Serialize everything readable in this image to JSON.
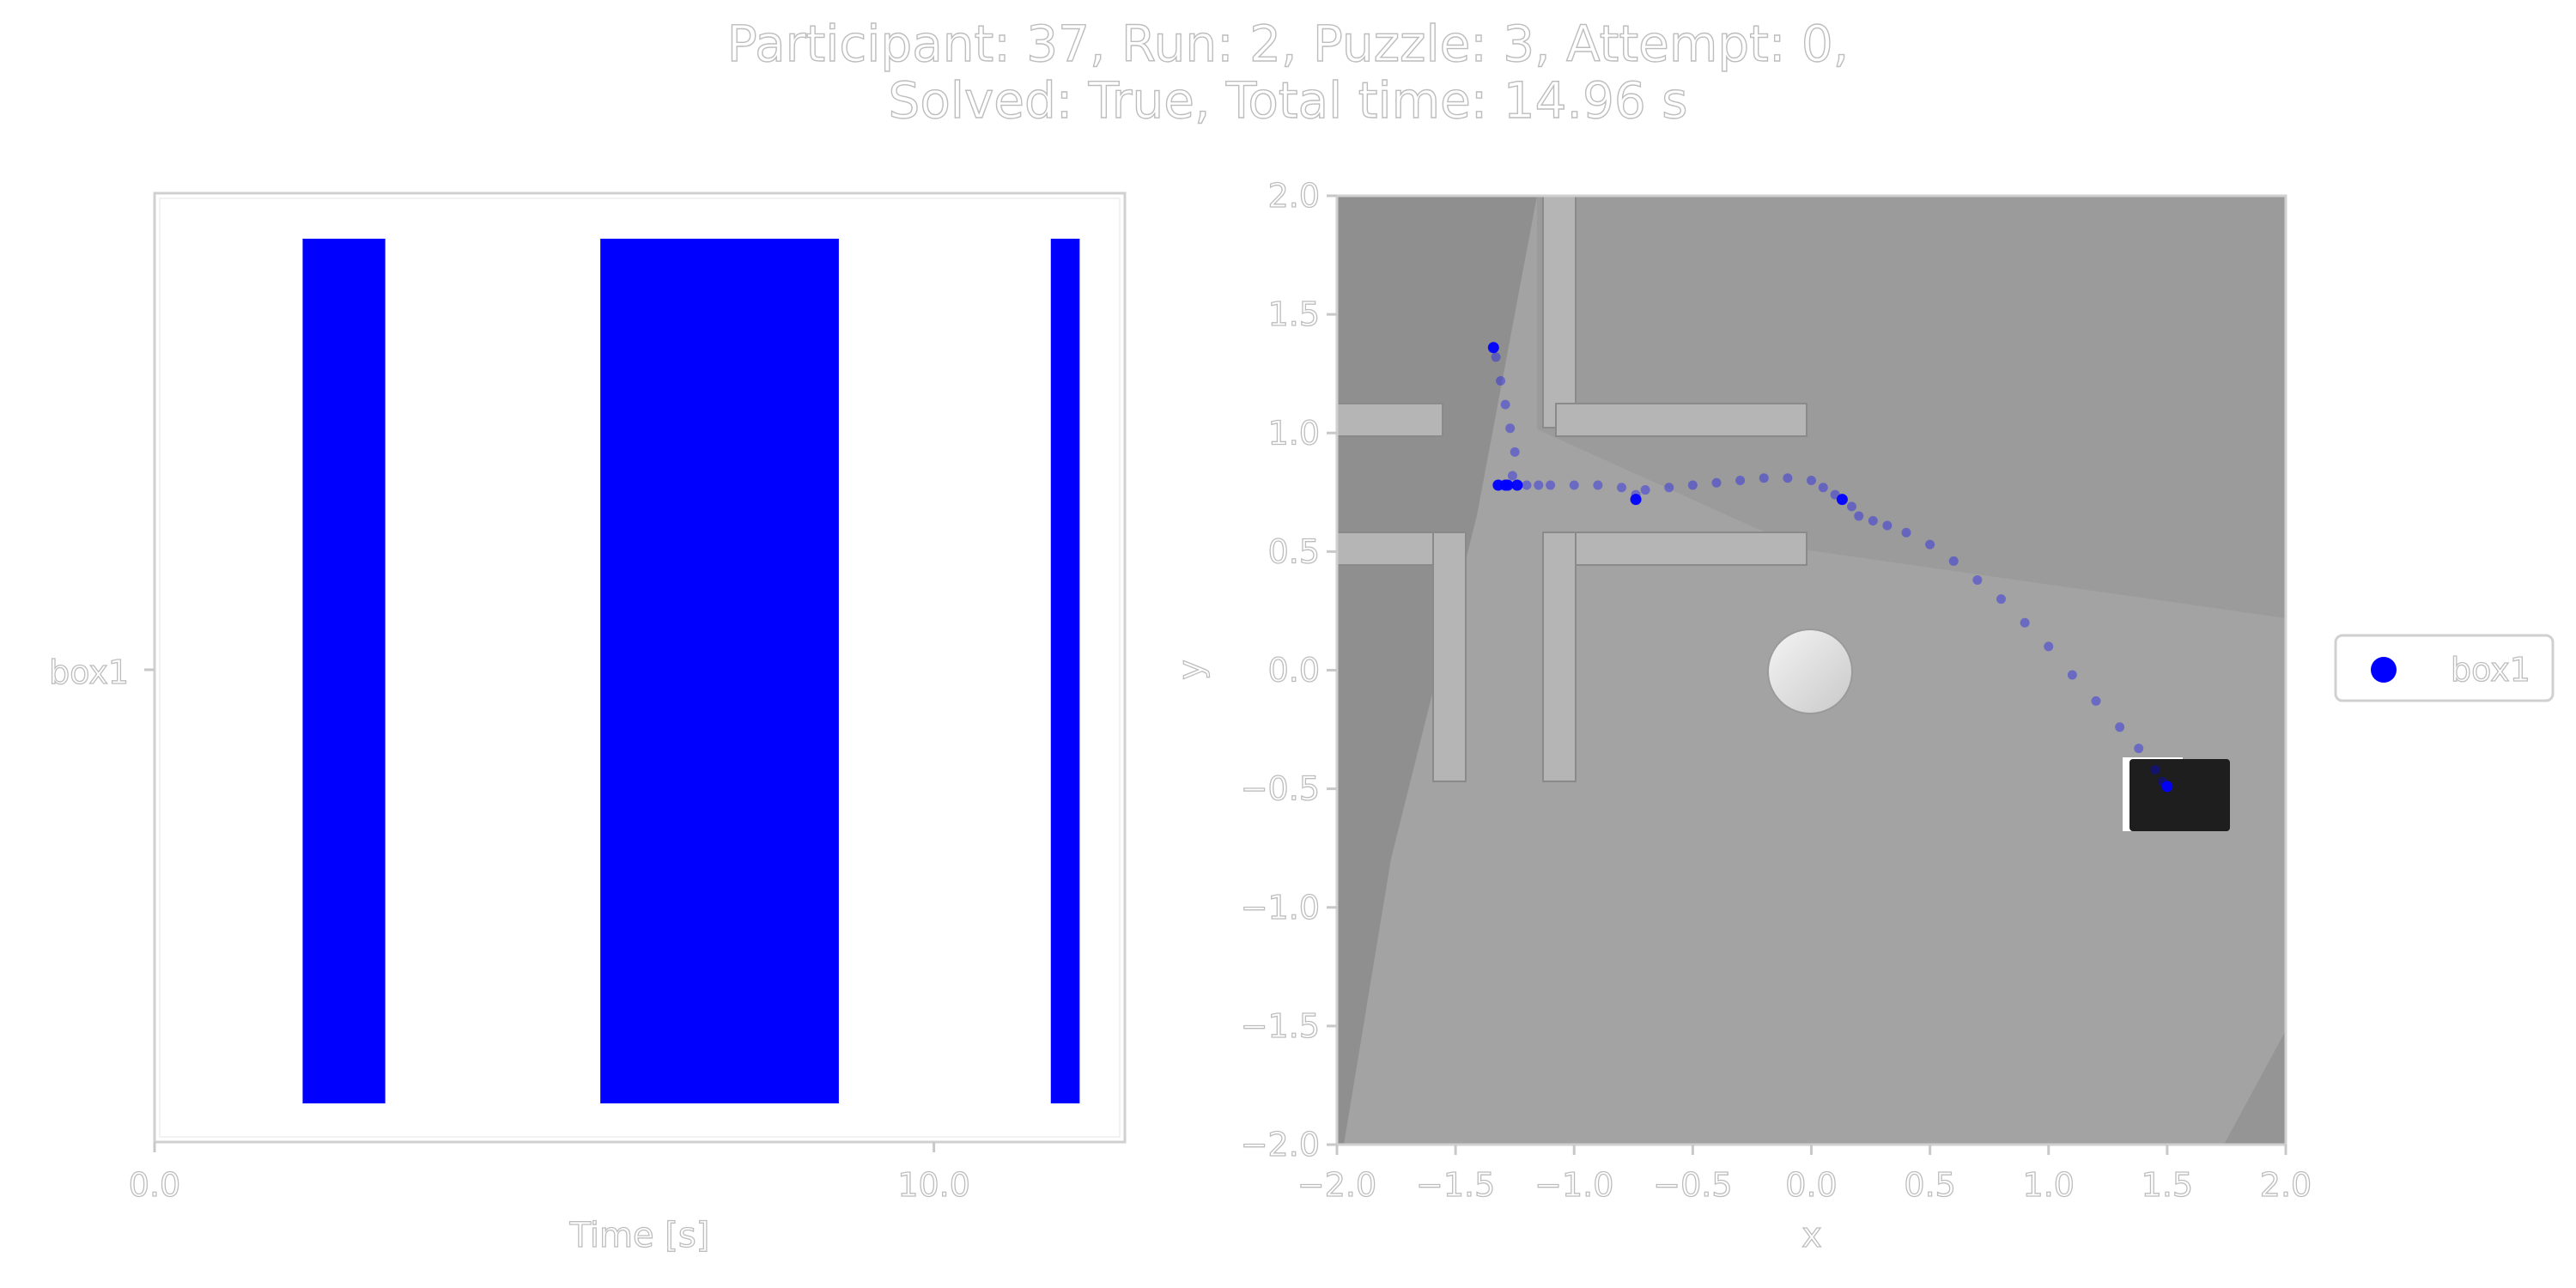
{
  "title": {
    "line1": "Participant: 37, Run: 2, Puzzle: 3, Attempt: 0,",
    "line2": "Solved: True, Total time: 14.96 s"
  },
  "colors": {
    "series": "#0000ff",
    "text_fill": "#ffffff",
    "text_stroke": "#bdbdbd",
    "axis": "#d0d0d0",
    "scene_floor": "#a3a3a3",
    "scene_floor_dark": "#8f8f8f",
    "scene_wall": "#b5b5b5",
    "scene_box": "#1e1e1e",
    "scene_circle": "#dedede"
  },
  "chart_data": [
    {
      "type": "bar",
      "subtype": "broken_barh",
      "xlabel": "Time [s]",
      "ylabel": "",
      "xlim": [
        0,
        12.45
      ],
      "xticks": [
        0,
        10
      ],
      "xtick_labels": [
        "0.0",
        "10.0"
      ],
      "categories": [
        "box1"
      ],
      "series": [
        {
          "name": "box1",
          "intervals": [
            {
              "start": 1.9,
              "end": 2.96
            },
            {
              "start": 5.72,
              "end": 8.78
            },
            {
              "start": 11.5,
              "end": 11.87
            }
          ]
        }
      ],
      "grid": false
    },
    {
      "type": "scatter",
      "xlabel": "x",
      "ylabel": "y",
      "xlim": [
        -2.0,
        2.0
      ],
      "ylim": [
        -2.0,
        2.0
      ],
      "ticks": [
        -2.0,
        -1.5,
        -1.0,
        -0.5,
        0.0,
        0.5,
        1.0,
        1.5,
        2.0
      ],
      "tick_labels": [
        "−2.0",
        "−1.5",
        "−1.0",
        "−0.5",
        "0.0",
        "0.5",
        "1.0",
        "1.5",
        "2.0"
      ],
      "background": "rendered top-down scene image (grey floor, walls, white disc, dark box)",
      "legend": {
        "position": "right",
        "entries": [
          "box1"
        ]
      },
      "series": [
        {
          "name": "box1",
          "x": [
            -1.34,
            -1.33,
            -1.31,
            -1.29,
            -1.27,
            -1.25,
            -1.26,
            -1.29,
            -1.32,
            -1.28,
            -1.24,
            -1.2,
            -1.15,
            -1.1,
            -1.0,
            -0.9,
            -0.8,
            -0.74,
            -0.74,
            -0.7,
            -0.6,
            -0.5,
            -0.4,
            -0.3,
            -0.2,
            -0.1,
            0.0,
            0.05,
            0.1,
            0.13,
            0.17,
            0.2,
            0.26,
            0.32,
            0.4,
            0.5,
            0.6,
            0.7,
            0.8,
            0.9,
            1.0,
            1.1,
            1.2,
            1.3,
            1.38,
            1.45,
            1.48,
            1.5
          ],
          "y": [
            1.36,
            1.32,
            1.22,
            1.12,
            1.02,
            0.92,
            0.82,
            0.78,
            0.78,
            0.78,
            0.78,
            0.78,
            0.78,
            0.78,
            0.78,
            0.78,
            0.77,
            0.74,
            0.72,
            0.76,
            0.77,
            0.78,
            0.79,
            0.8,
            0.81,
            0.81,
            0.8,
            0.77,
            0.74,
            0.72,
            0.69,
            0.65,
            0.63,
            0.61,
            0.58,
            0.53,
            0.46,
            0.38,
            0.3,
            0.2,
            0.1,
            -0.02,
            -0.13,
            -0.24,
            -0.33,
            -0.42,
            -0.47,
            -0.49
          ]
        }
      ],
      "grid": false
    }
  ]
}
